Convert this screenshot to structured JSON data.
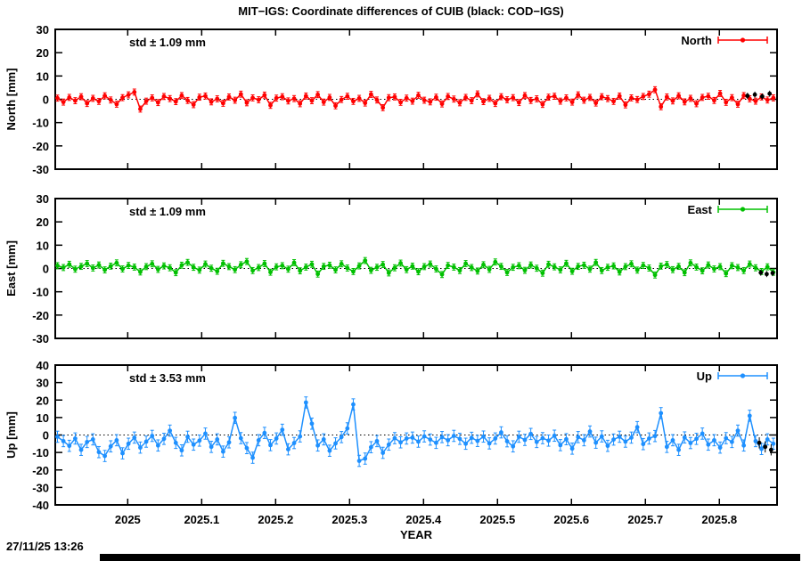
{
  "title": "MIT−IGS: Coordinate differences of CUIB (black: COD−IGS)",
  "timestamp": "27/11/25 13:26",
  "chart_data": {
    "type": "line",
    "title": "MIT−IGS: Coordinate differences of CUIB (black: COD−IGS)",
    "xlabel": "YEAR",
    "xlim": [
      2024.902,
      2025.878
    ],
    "xticks": [
      2025,
      2025.1,
      2025.2,
      2025.3,
      2025.4,
      2025.5,
      2025.6,
      2025.7,
      2025.8
    ],
    "xtick_labels": [
      "2025",
      "2025.1",
      "2025.2",
      "2025.3",
      "2025.4",
      "2025.5",
      "2025.6",
      "2025.7",
      "2025.8"
    ],
    "grid": false,
    "legend_position": "top-right-inside",
    "panels": [
      {
        "name": "North",
        "ylabel": "North [mm]",
        "ylim": [
          -30,
          30
        ],
        "ytick_step": 10,
        "color": "#ff0000",
        "std_label": "std ± 1.09 mm",
        "legend_label": "North",
        "err_mm": 1.3,
        "x_start": 2024.905,
        "x_step": 0.008,
        "values": [
          0.5,
          -1.2,
          0.8,
          -0.6,
          1.1,
          -1.8,
          0.4,
          -0.9,
          1.5,
          -0.3,
          -2.1,
          0.7,
          1.9,
          3.1,
          -4.2,
          -0.8,
          0.6,
          -1.4,
          1.2,
          0.3,
          -1.0,
          1.6,
          -0.5,
          -2.3,
          0.9,
          1.4,
          -1.1,
          0.2,
          -1.7,
          1.0,
          -0.4,
          2.2,
          -1.5,
          0.6,
          -0.2,
          1.8,
          -2.6,
          0.5,
          1.1,
          -0.7,
          0.3,
          -1.9,
          1.4,
          -0.6,
          2.0,
          -1.2,
          0.8,
          -2.8,
          -0.1,
          1.3,
          -0.9,
          0.4,
          -1.6,
          2.1,
          -0.3,
          -3.6,
          0.7,
          1.0,
          -1.3,
          0.5,
          -0.8,
          1.7,
          -0.4,
          -1.1,
          0.9,
          -2.0,
          1.2,
          0.1,
          -1.5,
          0.8,
          -0.6,
          2.3,
          -1.0,
          0.4,
          -1.8,
          1.1,
          -0.2,
          0.7,
          -1.4,
          1.6,
          -0.5,
          0.2,
          -2.2,
          0.9,
          1.3,
          -0.8,
          0.6,
          -1.2,
          1.9,
          -0.4,
          0.8,
          -1.6,
          1.1,
          0.3,
          -0.9,
          1.4,
          -2.4,
          0.6,
          -0.1,
          1.2,
          2.2,
          4.1,
          -3.2,
          1.0,
          -0.7,
          1.5,
          -1.1,
          0.4,
          -1.9,
          0.8,
          1.3,
          -0.5,
          2.5,
          -1.3,
          0.7,
          -2.1,
          1.6,
          0.2,
          -0.8,
          1.0,
          -0.3,
          0.6
        ],
        "black_points": [
          [
            2025.838,
            1.5
          ],
          [
            2025.848,
            2.0
          ],
          [
            2025.858,
            1.2
          ],
          [
            2025.868,
            2.4
          ]
        ]
      },
      {
        "name": "East",
        "ylabel": "East [mm]",
        "ylim": [
          -30,
          30
        ],
        "ytick_step": 10,
        "color": "#00c000",
        "std_label": "std ± 1.09 mm",
        "legend_label": "East",
        "err_mm": 1.3,
        "x_start": 2024.905,
        "x_step": 0.008,
        "values": [
          1.2,
          0.4,
          1.8,
          -0.3,
          0.9,
          2.1,
          0.2,
          1.5,
          -0.6,
          1.0,
          2.4,
          -0.2,
          1.3,
          0.6,
          -1.5,
          0.8,
          2.0,
          -0.4,
          1.1,
          0.3,
          -1.8,
          1.4,
          2.6,
          0.5,
          -0.7,
          1.9,
          0.1,
          -1.2,
          2.2,
          0.8,
          -0.5,
          1.6,
          3.0,
          -0.9,
          0.4,
          2.1,
          -1.6,
          0.7,
          1.2,
          -0.3,
          2.5,
          -1.0,
          0.6,
          1.8,
          -2.4,
          0.9,
          1.4,
          -0.6,
          2.0,
          0.2,
          -1.3,
          1.1,
          3.4,
          -0.8,
          0.5,
          1.7,
          -1.9,
          0.3,
          2.3,
          -0.5,
          1.0,
          -1.4,
          0.8,
          1.9,
          -0.2,
          -2.6,
          1.3,
          0.6,
          -0.9,
          2.1,
          0.4,
          -1.1,
          1.6,
          -0.4,
          2.8,
          0.9,
          -1.7,
          0.5,
          1.2,
          -0.8,
          1.5,
          0.1,
          -2.0,
          1.8,
          0.7,
          -0.6,
          2.2,
          -1.2,
          0.9,
          1.4,
          -0.3,
          2.6,
          -0.9,
          0.5,
          1.1,
          -1.5,
          0.8,
          2.0,
          -0.7,
          1.3,
          0.2,
          -2.8,
          1.0,
          1.7,
          -0.5,
          0.9,
          -1.8,
          2.4,
          0.6,
          -1.0,
          1.5,
          -0.2,
          0.8,
          -2.2,
          1.2,
          0.4,
          -0.9,
          1.9,
          0.3,
          -1.3,
          0.7,
          -1.6
        ],
        "black_points": [
          [
            2025.856,
            -1.8
          ],
          [
            2025.864,
            -2.4
          ],
          [
            2025.872,
            -2.0
          ]
        ]
      },
      {
        "name": "Up",
        "ylabel": "Up [mm]",
        "ylim": [
          -40,
          40
        ],
        "ytick_step": 10,
        "color": "#1e90ff",
        "std_label": "std ± 3.53 mm",
        "legend_label": "Up",
        "err_mm": 3.2,
        "x_start": 2024.905,
        "x_step": 0.008,
        "values": [
          -1.0,
          -3.5,
          -6.2,
          -2.0,
          -8.5,
          -4.0,
          -2.5,
          -9.8,
          -12.0,
          -6.5,
          -3.0,
          -10.5,
          -5.0,
          -1.5,
          -7.2,
          -3.8,
          -0.5,
          -6.0,
          -2.2,
          2.5,
          -4.5,
          -8.8,
          -1.0,
          -5.5,
          -3.2,
          0.8,
          -6.8,
          -2.5,
          -9.5,
          -4.2,
          9.8,
          -1.8,
          -7.5,
          -13.0,
          -3.0,
          1.2,
          -5.8,
          -2.0,
          3.0,
          -8.2,
          -4.6,
          -0.8,
          18.6,
          6.5,
          -6.0,
          -2.5,
          -9.0,
          -4.8,
          -1.2,
          3.8,
          17.5,
          -14.8,
          -13.5,
          -7.0,
          -3.5,
          -10.2,
          -5.5,
          -1.8,
          -4.2,
          -2.0,
          -1.5,
          -3.8,
          -0.8,
          -2.6,
          -4.5,
          -1.2,
          -3.0,
          -0.5,
          -2.2,
          -5.0,
          -1.6,
          -3.4,
          -0.9,
          -4.8,
          -2.0,
          1.5,
          -3.6,
          -6.5,
          -1.0,
          -2.8,
          0.6,
          -4.0,
          -1.8,
          -3.2,
          -0.4,
          -5.8,
          -2.4,
          -7.8,
          -1.2,
          -3.0,
          2.0,
          -4.4,
          -0.8,
          -6.2,
          -2.6,
          -1.0,
          -3.8,
          -1.5,
          4.5,
          -5.2,
          -2.0,
          -0.6,
          12.5,
          -6.8,
          -3.0,
          -8.5,
          -1.4,
          -4.6,
          -2.2,
          0.8,
          -5.5,
          -3.0,
          -7.2,
          -1.8,
          -4.0,
          2.5,
          -6.0,
          11.0,
          -3.5,
          -8.0,
          -2.5,
          -5.0
        ],
        "black_points": [
          [
            2025.854,
            -4.5
          ],
          [
            2025.862,
            -6.8
          ],
          [
            2025.87,
            -8.5
          ]
        ]
      }
    ]
  }
}
